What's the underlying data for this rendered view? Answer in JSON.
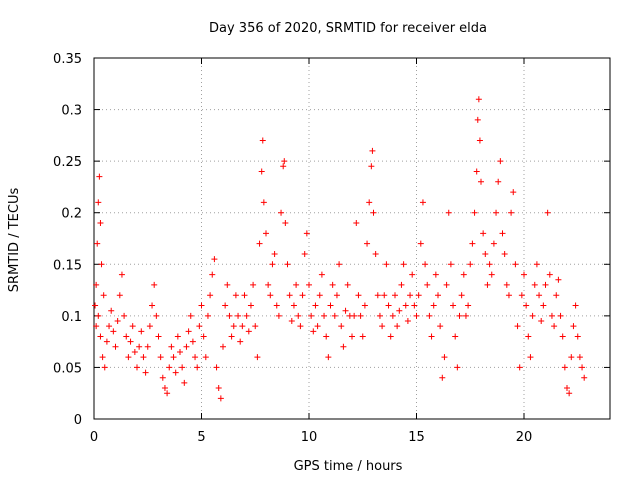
{
  "chart_data": {
    "type": "scatter",
    "title": "Day 356 of 2020, SRMTID for receiver elda",
    "xlabel": "GPS time / hours",
    "ylabel": "SRMTID / TECUs",
    "xlim": [
      0,
      24
    ],
    "ylim": [
      0,
      0.35
    ],
    "xticks": [
      0,
      5,
      10,
      15,
      20
    ],
    "yticks": [
      0,
      0.05,
      0.1,
      0.15,
      0.2,
      0.25,
      0.3,
      0.35
    ],
    "xtick_labels": [
      "0",
      "5",
      "10",
      "15",
      "20"
    ],
    "ytick_labels": [
      "0",
      "0.05",
      "0.1",
      "0.15",
      "0.2",
      "0.25",
      "0.3",
      "0.35"
    ],
    "grid": true,
    "marker": "+",
    "marker_color": "#ff0000",
    "series": [
      {
        "name": "SRMTID",
        "points": [
          [
            0.05,
            0.11
          ],
          [
            0.1,
            0.13
          ],
          [
            0.15,
            0.17
          ],
          [
            0.2,
            0.21
          ],
          [
            0.25,
            0.235
          ],
          [
            0.3,
            0.19
          ],
          [
            0.35,
            0.15
          ],
          [
            0.45,
            0.12
          ],
          [
            0.1,
            0.09
          ],
          [
            0.2,
            0.1
          ],
          [
            0.3,
            0.08
          ],
          [
            0.4,
            0.06
          ],
          [
            0.5,
            0.05
          ],
          [
            0.6,
            0.075
          ],
          [
            0.7,
            0.09
          ],
          [
            0.8,
            0.105
          ],
          [
            0.9,
            0.085
          ],
          [
            1.0,
            0.07
          ],
          [
            1.1,
            0.095
          ],
          [
            1.2,
            0.12
          ],
          [
            1.3,
            0.14
          ],
          [
            1.4,
            0.1
          ],
          [
            1.5,
            0.08
          ],
          [
            1.6,
            0.06
          ],
          [
            1.7,
            0.075
          ],
          [
            1.8,
            0.09
          ],
          [
            1.9,
            0.065
          ],
          [
            2.0,
            0.05
          ],
          [
            2.1,
            0.07
          ],
          [
            2.2,
            0.085
          ],
          [
            2.3,
            0.06
          ],
          [
            2.4,
            0.045
          ],
          [
            2.5,
            0.07
          ],
          [
            2.6,
            0.09
          ],
          [
            2.7,
            0.11
          ],
          [
            2.8,
            0.13
          ],
          [
            2.9,
            0.1
          ],
          [
            3.0,
            0.08
          ],
          [
            3.1,
            0.06
          ],
          [
            3.2,
            0.04
          ],
          [
            3.3,
            0.03
          ],
          [
            3.4,
            0.025
          ],
          [
            3.5,
            0.05
          ],
          [
            3.6,
            0.07
          ],
          [
            3.7,
            0.06
          ],
          [
            3.8,
            0.045
          ],
          [
            3.9,
            0.08
          ],
          [
            4.0,
            0.065
          ],
          [
            4.1,
            0.05
          ],
          [
            4.2,
            0.035
          ],
          [
            4.3,
            0.07
          ],
          [
            4.4,
            0.085
          ],
          [
            4.5,
            0.1
          ],
          [
            4.6,
            0.075
          ],
          [
            4.7,
            0.06
          ],
          [
            4.8,
            0.05
          ],
          [
            4.9,
            0.09
          ],
          [
            5.0,
            0.11
          ],
          [
            5.1,
            0.08
          ],
          [
            5.2,
            0.06
          ],
          [
            5.3,
            0.1
          ],
          [
            5.4,
            0.12
          ],
          [
            5.5,
            0.14
          ],
          [
            5.6,
            0.155
          ],
          [
            5.7,
            0.05
          ],
          [
            5.8,
            0.03
          ],
          [
            5.9,
            0.02
          ],
          [
            6.0,
            0.07
          ],
          [
            6.1,
            0.11
          ],
          [
            6.2,
            0.13
          ],
          [
            6.3,
            0.1
          ],
          [
            6.4,
            0.08
          ],
          [
            6.5,
            0.09
          ],
          [
            6.6,
            0.12
          ],
          [
            6.7,
            0.1
          ],
          [
            6.8,
            0.075
          ],
          [
            6.9,
            0.09
          ],
          [
            7.0,
            0.12
          ],
          [
            7.1,
            0.1
          ],
          [
            7.2,
            0.085
          ],
          [
            7.3,
            0.11
          ],
          [
            7.4,
            0.13
          ],
          [
            7.5,
            0.09
          ],
          [
            7.6,
            0.06
          ],
          [
            7.7,
            0.17
          ],
          [
            7.8,
            0.24
          ],
          [
            7.85,
            0.27
          ],
          [
            7.9,
            0.21
          ],
          [
            8.0,
            0.18
          ],
          [
            8.1,
            0.13
          ],
          [
            8.2,
            0.12
          ],
          [
            8.3,
            0.15
          ],
          [
            8.4,
            0.16
          ],
          [
            8.5,
            0.11
          ],
          [
            8.6,
            0.1
          ],
          [
            8.7,
            0.2
          ],
          [
            8.8,
            0.245
          ],
          [
            8.85,
            0.25
          ],
          [
            8.9,
            0.19
          ],
          [
            9.0,
            0.15
          ],
          [
            9.1,
            0.12
          ],
          [
            9.2,
            0.095
          ],
          [
            9.3,
            0.11
          ],
          [
            9.4,
            0.13
          ],
          [
            9.5,
            0.1
          ],
          [
            9.6,
            0.09
          ],
          [
            9.7,
            0.12
          ],
          [
            9.8,
            0.16
          ],
          [
            9.9,
            0.18
          ],
          [
            10.0,
            0.13
          ],
          [
            10.1,
            0.1
          ],
          [
            10.2,
            0.085
          ],
          [
            10.3,
            0.11
          ],
          [
            10.4,
            0.09
          ],
          [
            10.5,
            0.12
          ],
          [
            10.6,
            0.14
          ],
          [
            10.7,
            0.1
          ],
          [
            10.8,
            0.08
          ],
          [
            10.9,
            0.06
          ],
          [
            11.0,
            0.11
          ],
          [
            11.1,
            0.13
          ],
          [
            11.2,
            0.1
          ],
          [
            11.3,
            0.12
          ],
          [
            11.4,
            0.15
          ],
          [
            11.5,
            0.09
          ],
          [
            11.6,
            0.07
          ],
          [
            11.7,
            0.105
          ],
          [
            11.8,
            0.13
          ],
          [
            11.9,
            0.1
          ],
          [
            12.0,
            0.08
          ],
          [
            12.1,
            0.1
          ],
          [
            12.2,
            0.19
          ],
          [
            12.3,
            0.12
          ],
          [
            12.4,
            0.1
          ],
          [
            12.5,
            0.08
          ],
          [
            12.6,
            0.11
          ],
          [
            12.7,
            0.17
          ],
          [
            12.8,
            0.21
          ],
          [
            12.9,
            0.245
          ],
          [
            12.95,
            0.26
          ],
          [
            13.0,
            0.2
          ],
          [
            13.1,
            0.16
          ],
          [
            13.2,
            0.12
          ],
          [
            13.3,
            0.1
          ],
          [
            13.4,
            0.09
          ],
          [
            13.5,
            0.12
          ],
          [
            13.6,
            0.15
          ],
          [
            13.7,
            0.11
          ],
          [
            13.8,
            0.08
          ],
          [
            13.9,
            0.1
          ],
          [
            14.0,
            0.12
          ],
          [
            14.1,
            0.09
          ],
          [
            14.2,
            0.105
          ],
          [
            14.3,
            0.13
          ],
          [
            14.4,
            0.15
          ],
          [
            14.5,
            0.11
          ],
          [
            14.6,
            0.095
          ],
          [
            14.7,
            0.12
          ],
          [
            14.8,
            0.14
          ],
          [
            14.9,
            0.11
          ],
          [
            15.0,
            0.1
          ],
          [
            15.1,
            0.12
          ],
          [
            15.2,
            0.17
          ],
          [
            15.3,
            0.21
          ],
          [
            15.4,
            0.15
          ],
          [
            15.5,
            0.13
          ],
          [
            15.6,
            0.1
          ],
          [
            15.7,
            0.08
          ],
          [
            15.8,
            0.11
          ],
          [
            15.9,
            0.14
          ],
          [
            16.0,
            0.12
          ],
          [
            16.1,
            0.09
          ],
          [
            16.2,
            0.04
          ],
          [
            16.3,
            0.06
          ],
          [
            16.4,
            0.13
          ],
          [
            16.5,
            0.2
          ],
          [
            16.6,
            0.15
          ],
          [
            16.7,
            0.11
          ],
          [
            16.8,
            0.08
          ],
          [
            16.9,
            0.05
          ],
          [
            17.0,
            0.1
          ],
          [
            17.1,
            0.12
          ],
          [
            17.2,
            0.14
          ],
          [
            17.3,
            0.1
          ],
          [
            17.4,
            0.11
          ],
          [
            17.5,
            0.15
          ],
          [
            17.6,
            0.17
          ],
          [
            17.7,
            0.2
          ],
          [
            17.8,
            0.24
          ],
          [
            17.85,
            0.29
          ],
          [
            17.9,
            0.31
          ],
          [
            17.95,
            0.27
          ],
          [
            18.0,
            0.23
          ],
          [
            18.1,
            0.18
          ],
          [
            18.2,
            0.16
          ],
          [
            18.3,
            0.13
          ],
          [
            18.4,
            0.15
          ],
          [
            18.5,
            0.14
          ],
          [
            18.6,
            0.17
          ],
          [
            18.7,
            0.2
          ],
          [
            18.8,
            0.23
          ],
          [
            18.9,
            0.25
          ],
          [
            19.0,
            0.18
          ],
          [
            19.1,
            0.16
          ],
          [
            19.2,
            0.13
          ],
          [
            19.3,
            0.12
          ],
          [
            19.4,
            0.2
          ],
          [
            19.5,
            0.22
          ],
          [
            19.6,
            0.15
          ],
          [
            19.7,
            0.09
          ],
          [
            19.8,
            0.05
          ],
          [
            19.9,
            0.12
          ],
          [
            20.0,
            0.14
          ],
          [
            20.1,
            0.11
          ],
          [
            20.2,
            0.08
          ],
          [
            20.3,
            0.06
          ],
          [
            20.4,
            0.1
          ],
          [
            20.5,
            0.13
          ],
          [
            20.6,
            0.15
          ],
          [
            20.7,
            0.12
          ],
          [
            20.8,
            0.095
          ],
          [
            20.9,
            0.11
          ],
          [
            21.0,
            0.13
          ],
          [
            21.1,
            0.2
          ],
          [
            21.2,
            0.14
          ],
          [
            21.3,
            0.1
          ],
          [
            21.4,
            0.09
          ],
          [
            21.5,
            0.12
          ],
          [
            21.6,
            0.135
          ],
          [
            21.7,
            0.1
          ],
          [
            21.8,
            0.08
          ],
          [
            21.9,
            0.05
          ],
          [
            22.0,
            0.03
          ],
          [
            22.1,
            0.025
          ],
          [
            22.2,
            0.06
          ],
          [
            22.3,
            0.09
          ],
          [
            22.4,
            0.11
          ],
          [
            22.5,
            0.08
          ],
          [
            22.6,
            0.06
          ],
          [
            22.7,
            0.05
          ],
          [
            22.8,
            0.04
          ]
        ]
      }
    ]
  }
}
